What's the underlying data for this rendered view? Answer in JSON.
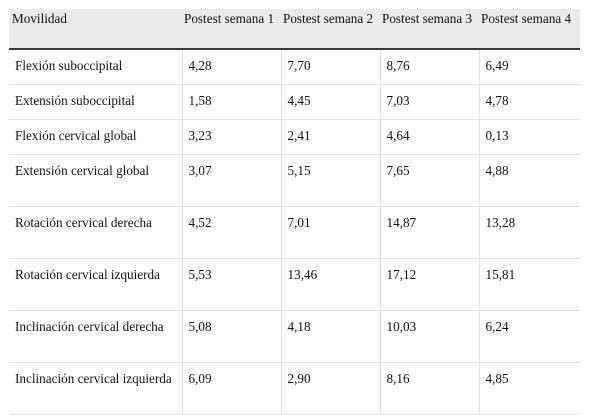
{
  "table": {
    "headers": [
      "Movilidad",
      "Postest semana 1",
      "Postest semana 2",
      "Postest semana 3",
      "Postest semana 4"
    ],
    "rows": [
      [
        "Flexión suboccipital",
        "4,28",
        "7,70",
        "8,76",
        "6,49"
      ],
      [
        "Extensión suboccipital",
        "1,58",
        "4,45",
        "7,03",
        "4,78"
      ],
      [
        "Flexión cervical global",
        "3,23",
        "2,41",
        "4,64",
        "0,13"
      ],
      [
        "Extensión cervical global",
        "3,07",
        "5,15",
        "7,65",
        "4,88"
      ],
      [
        "Rotación cervical derecha",
        "4,52",
        "7,01",
        "14,87",
        "13,28"
      ],
      [
        "Rotación cervical izquierda",
        "5,53",
        "13,46",
        "17,12",
        "15,81"
      ],
      [
        "Inclinación cervical derecha",
        "5,08",
        "4,18",
        "10,03",
        "6,24"
      ],
      [
        "Inclinación cervical izquierda",
        "6,09",
        "2,90",
        "8,16",
        "4,85"
      ]
    ]
  }
}
